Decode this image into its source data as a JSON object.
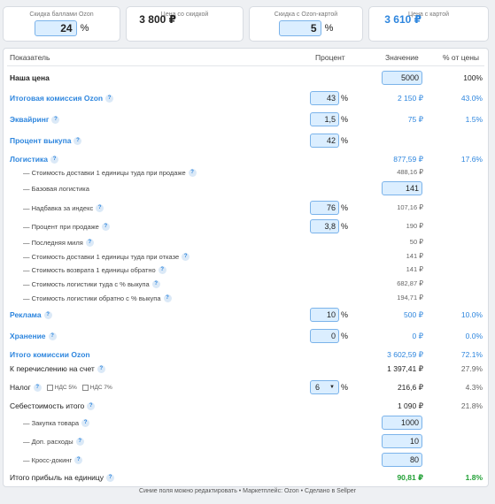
{
  "cards": {
    "bonus": {
      "label": "Скидка баллами Ozon",
      "value": "24",
      "unit": "%"
    },
    "discount_price": {
      "label": "Цена со скидкой",
      "value": "3 800 ₽"
    },
    "ozon_card": {
      "label": "Скидка с Ozon-картой",
      "value": "5",
      "unit": "%"
    },
    "card_price": {
      "label": "Цена с картой",
      "value": "3 610 ₽"
    }
  },
  "headers": {
    "name": "Показатель",
    "percent": "Процент",
    "value": "Значение",
    "share": "% от цены"
  },
  "rows": {
    "our_price": {
      "name": "Наша цена",
      "value": "5000",
      "share": "100%"
    },
    "commission": {
      "name": "Итоговая комиссия Ozon",
      "percent": "43",
      "unit": "%",
      "value": "2 150 ₽",
      "share": "43.0%"
    },
    "acquiring": {
      "name": "Эквайринг",
      "percent": "1,5",
      "unit": "%",
      "value": "75 ₽",
      "share": "1.5%"
    },
    "buyout": {
      "name": "Процент выкупа",
      "percent": "42",
      "unit": "%"
    },
    "logistics": {
      "name": "Логистика",
      "value": "877,59 ₽",
      "share": "17.6%"
    },
    "delivery_sale": {
      "name": "— Стоимость доставки 1 единицы туда при продаже",
      "value": "488,16 ₽"
    },
    "base_logistics": {
      "name": "— Базовая логистика",
      "value": "141"
    },
    "index_markup": {
      "name": "— Надбавка за индекс",
      "percent": "76",
      "unit": "%",
      "value": "107,16 ₽"
    },
    "sale_percent": {
      "name": "— Процент при продаже",
      "percent": "3,8",
      "unit": "%",
      "value": "190 ₽"
    },
    "last_mile": {
      "name": "— Последняя миля",
      "value": "50 ₽"
    },
    "delivery_refusal": {
      "name": "— Стоимость доставки 1 единицы туда при отказе",
      "value": "141 ₽"
    },
    "return_cost": {
      "name": "— Стоимость возврата 1 единицы обратно",
      "value": "141 ₽"
    },
    "logistics_there": {
      "name": "— Стоимость логистики туда с % выкупа",
      "value": "682,87 ₽"
    },
    "logistics_back": {
      "name": "— Стоимость логистики обратно с % выкупа",
      "value": "194,71 ₽"
    },
    "ads": {
      "name": "Реклама",
      "percent": "10",
      "unit": "%",
      "value": "500 ₽",
      "share": "10.0%"
    },
    "storage": {
      "name": "Хранение",
      "percent": "0",
      "unit": "%",
      "value": "0 ₽",
      "share": "0.0%"
    },
    "total_commission": {
      "name": "Итого комиссии Ozon",
      "value": "3 602,59 ₽",
      "share": "72.1%"
    },
    "payout": {
      "name": "К перечислению на счет",
      "value": "1 397,41 ₽",
      "share": "27.9%"
    },
    "tax": {
      "name": "Налог",
      "vat5": "НДС 5%",
      "vat7": "НДС 7%",
      "percent": "6",
      "unit": "%",
      "value": "216,6 ₽",
      "share": "4.3%"
    },
    "cost_total": {
      "name": "Себестоимость итого",
      "value": "1 090 ₽",
      "share": "21.8%"
    },
    "purchase": {
      "name": "— Закупка товара",
      "value": "1000"
    },
    "extra": {
      "name": "— Доп. расходы",
      "value": "10"
    },
    "crossdock": {
      "name": "— Кросс-докинг",
      "value": "80"
    },
    "profit": {
      "name": "Итого прибыль на единицу",
      "value": "90,81 ₽",
      "share": "1.8%"
    }
  },
  "footer": "Синие поля можно редактировать • Маркетплейс: Ozon • Сделано в Sellper",
  "icons": {
    "help": "?",
    "caret": "▼"
  },
  "colors": {
    "accent": "#2e86de",
    "profit": "#22a036",
    "input_bg": "#dbeeff"
  }
}
